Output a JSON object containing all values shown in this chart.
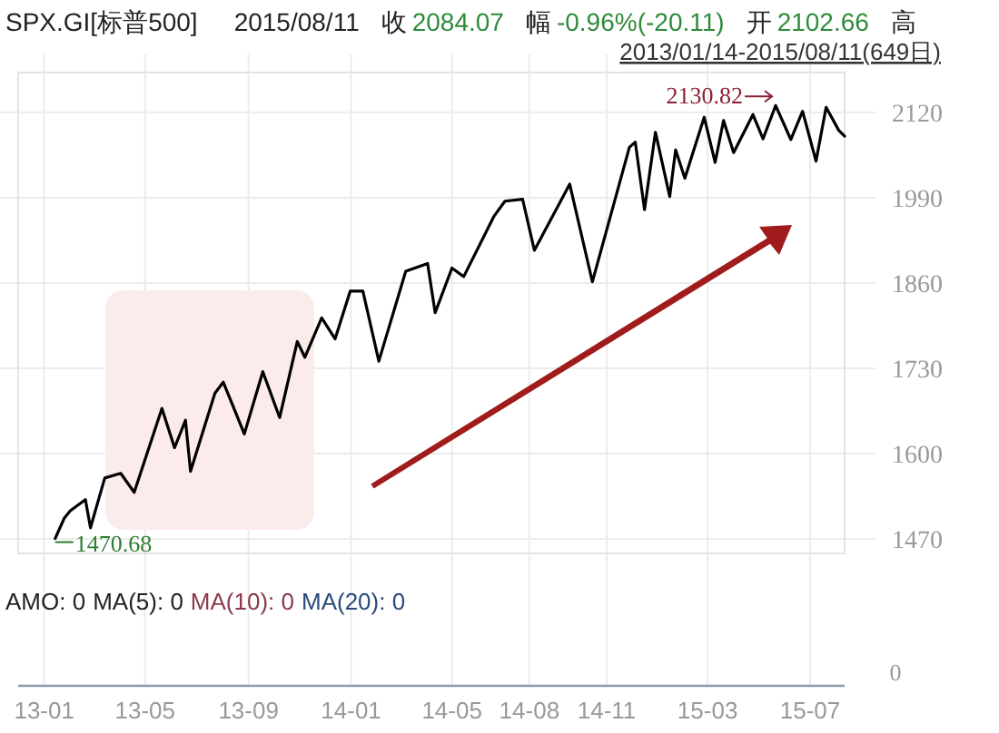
{
  "chart_data": {
    "type": "line",
    "title": "SPX.GI[标普500]",
    "subtitle": "2013/01/14-2015/08/11(649日)",
    "annotations": [
      "2015/08/11",
      "收",
      "2084.07",
      "幅",
      "-0.96%(-20.11)",
      "开",
      "2102.66",
      "高",
      "AMO: 0",
      "MA(5): 0",
      "MA(10): 0",
      "MA(20): 0",
      "0",
      {
        "text": "1470.68",
        "x": "2013-01-14",
        "y": 1470.68
      },
      {
        "text": "2130.82",
        "x": "2015-05-21",
        "y": 2130.82
      }
    ],
    "x": [
      "2013-01-14",
      "2013-01-25",
      "2013-02-01",
      "2013-02-19",
      "2013-02-25",
      "2013-03-14",
      "2013-04-02",
      "2013-04-18",
      "2013-05-21",
      "2013-06-05",
      "2013-06-18",
      "2013-06-24",
      "2013-07-23",
      "2013-08-02",
      "2013-08-27",
      "2013-09-18",
      "2013-10-08",
      "2013-10-29",
      "2013-11-07",
      "2013-11-27",
      "2013-12-13",
      "2013-12-31",
      "2014-01-15",
      "2014-02-03",
      "2014-03-07",
      "2014-04-02",
      "2014-04-11",
      "2014-05-01",
      "2014-05-15",
      "2014-06-20",
      "2014-07-03",
      "2014-07-24",
      "2014-08-07",
      "2014-09-18",
      "2014-10-15",
      "2014-11-28",
      "2014-12-05",
      "2014-12-16",
      "2014-12-29",
      "2015-01-15",
      "2015-01-22",
      "2015-02-02",
      "2015-02-25",
      "2015-03-10",
      "2015-03-20",
      "2015-04-01",
      "2015-04-24",
      "2015-05-06",
      "2015-05-21",
      "2015-06-08",
      "2015-06-22",
      "2015-07-08",
      "2015-07-20",
      "2015-08-04",
      "2015-08-11"
    ],
    "series": [
      {
        "color": "#000000",
        "values": [
          1470.68,
          1502,
          1513,
          1530,
          1487,
          1563,
          1570,
          1541,
          1669,
          1609,
          1651,
          1573,
          1692,
          1709,
          1630,
          1725,
          1655,
          1771,
          1747,
          1807,
          1775,
          1848,
          1848,
          1741,
          1878,
          1890,
          1815,
          1883,
          1870,
          1962,
          1985,
          1988,
          1910,
          2011,
          1862,
          2067,
          2075,
          1972,
          2090,
          1992,
          2063,
          2020,
          2113,
          2044,
          2108,
          2059,
          2117,
          2080,
          2130.82,
          2079,
          2122,
          2046,
          2128,
          2093,
          2084.07
        ]
      }
    ],
    "xlim": [
      "2012-12-01",
      "2015-08-11"
    ],
    "xticks": [
      {
        "value": "2013-01-01",
        "label": "13-01"
      },
      {
        "value": "2013-05-01",
        "label": "13-05"
      },
      {
        "value": "2013-09-01",
        "label": "13-09"
      },
      {
        "value": "2014-01-01",
        "label": "14-01"
      },
      {
        "value": "2014-05-01",
        "label": "14-05"
      },
      {
        "value": "2014-08-01",
        "label": "14-08"
      },
      {
        "value": "2014-11-01",
        "label": "14-11"
      },
      {
        "value": "2015-03-01",
        "label": "15-03"
      },
      {
        "value": "2015-07-01",
        "label": "15-07"
      }
    ],
    "ylim": [
      1448,
      2181
    ],
    "yticks": [
      1470,
      1600,
      1730,
      1860,
      1990,
      2120
    ],
    "grid": true
  }
}
